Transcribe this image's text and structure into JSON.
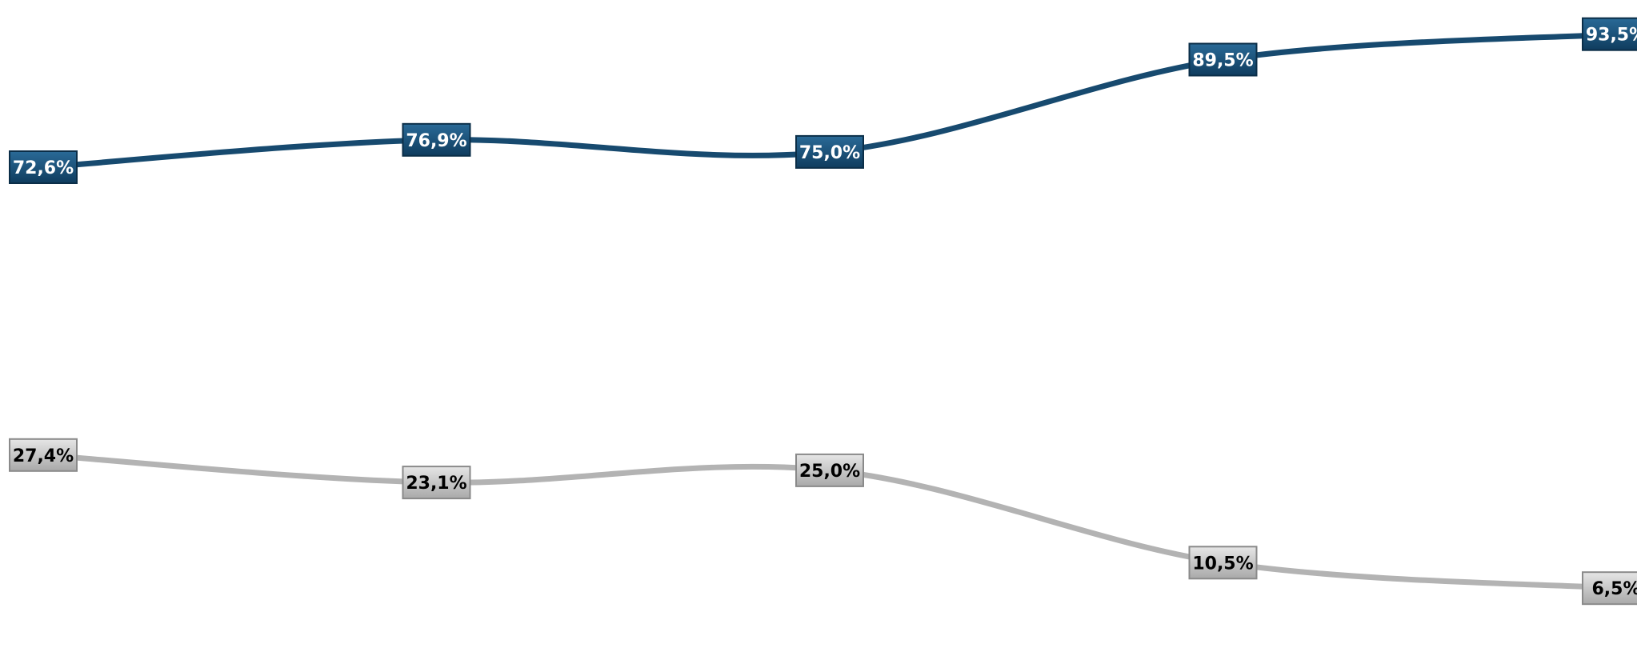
{
  "chart_data": {
    "type": "line",
    "title": "",
    "xlabel": "",
    "ylabel": "",
    "ylim": [
      5,
      95
    ],
    "categories": [
      "",
      "",
      "",
      "",
      ""
    ],
    "x": [
      0,
      1,
      2,
      3,
      4
    ],
    "grid": false,
    "legend": "none",
    "smooth": true,
    "series": [
      {
        "color": "#174a6f",
        "label_bg": "#174a6f",
        "label_text_color": "#ffffff",
        "values": [
          72.6,
          76.9,
          75.0,
          89.5,
          93.5
        ],
        "labels": [
          "72,6%",
          "76,9%",
          "75,0%",
          "89,5%",
          "93,5%"
        ]
      },
      {
        "color": "#b3b3b3",
        "label_bg": "#b8b8b8",
        "label_text_color": "#000000",
        "values": [
          27.4,
          23.1,
          25.0,
          10.5,
          6.5
        ],
        "labels": [
          "27,4%",
          "23,1%",
          "25,0%",
          "10,5%",
          "6,5%"
        ]
      }
    ]
  }
}
